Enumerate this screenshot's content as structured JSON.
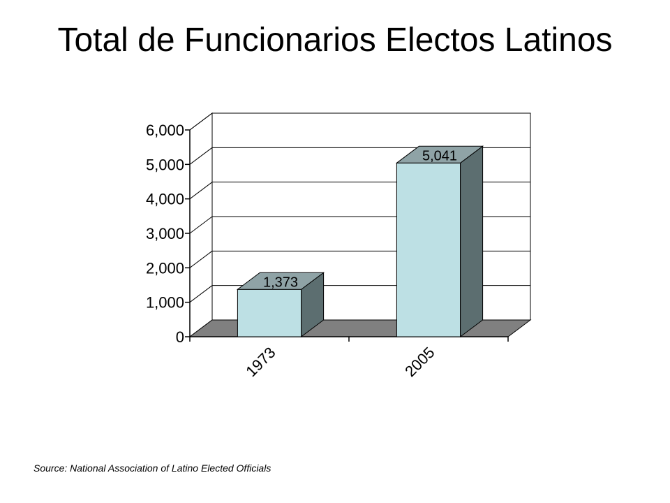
{
  "chart_data": {
    "type": "bar",
    "title": "Total de Funcionarios Electos Latinos",
    "categories": [
      "1973",
      "2005"
    ],
    "values": [
      1373,
      5041
    ],
    "data_labels": [
      "1,373",
      "5,041"
    ],
    "y_ticks": [
      "0",
      "1,000",
      "2,000",
      "3,000",
      "4,000",
      "5,000",
      "6,000"
    ],
    "ylim": [
      0,
      6000
    ],
    "grid": true,
    "three_d": true,
    "xlabel": "",
    "ylabel": "",
    "colors": {
      "bar_front": "#bde0e4",
      "bar_side": "#5c6e70",
      "bar_top": "#8fa3a6",
      "floor": "#808080",
      "grid": "#000000"
    }
  },
  "source": "Source: National Association of Latino Elected Officials"
}
